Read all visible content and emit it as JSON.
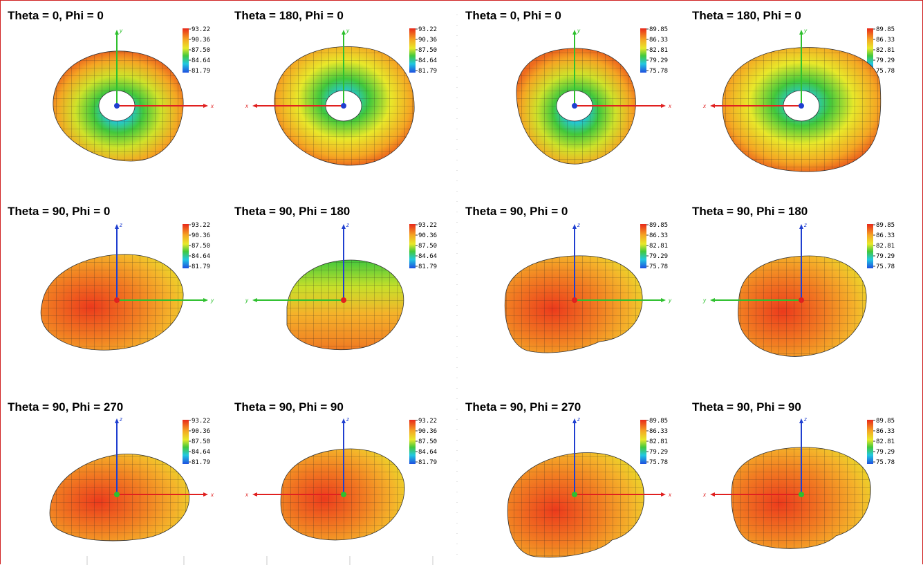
{
  "colors": {
    "high": "#e8281a",
    "upper": "#f5a623",
    "mid": "#e8e82a",
    "green": "#42c83c",
    "cyan": "#22c8e0",
    "low": "#1e4fe0",
    "axis_x": "#e02020",
    "axis_y": "#2ec02e",
    "axis_z": "#1f3fd0",
    "frame": "#d02020"
  },
  "colorbars": {
    "left": [
      "93.22",
      "90.36",
      "87.50",
      "84.64",
      "81.79"
    ],
    "right": [
      "89.85",
      "86.33",
      "82.81",
      "79.29",
      "75.78"
    ]
  },
  "panels": [
    {
      "title": "Theta = 0, Phi = 0",
      "scale": "left",
      "view": "top",
      "axes": {
        "h": "x",
        "v": "y",
        "h_dir": "right"
      }
    },
    {
      "title": "Theta = 180, Phi = 0",
      "scale": "left",
      "view": "top",
      "axes": {
        "h": "x",
        "v": "y",
        "h_dir": "left"
      }
    },
    {
      "title": "Theta = 0, Phi = 0",
      "scale": "right",
      "view": "top",
      "axes": {
        "h": "x",
        "v": "y",
        "h_dir": "right"
      }
    },
    {
      "title": "Theta = 180, Phi = 0",
      "scale": "right",
      "view": "top",
      "axes": {
        "h": "x",
        "v": "y",
        "h_dir": "left"
      }
    },
    {
      "title": "Theta = 90, Phi = 0",
      "scale": "left",
      "view": "side",
      "axes": {
        "h": "y",
        "v": "z",
        "h_dir": "right"
      }
    },
    {
      "title": "Theta = 90, Phi = 180",
      "scale": "left",
      "view": "side",
      "axes": {
        "h": "y",
        "v": "z",
        "h_dir": "left"
      }
    },
    {
      "title": "Theta = 90, Phi = 0",
      "scale": "right",
      "view": "side",
      "axes": {
        "h": "y",
        "v": "z",
        "h_dir": "right"
      }
    },
    {
      "title": "Theta = 90, Phi = 180",
      "scale": "right",
      "view": "side",
      "axes": {
        "h": "y",
        "v": "z",
        "h_dir": "left"
      }
    },
    {
      "title": "Theta = 90, Phi = 270",
      "scale": "left",
      "view": "side",
      "axes": {
        "h": "x",
        "v": "z",
        "h_dir": "right"
      }
    },
    {
      "title": "Theta = 90, Phi = 90",
      "scale": "left",
      "view": "side",
      "axes": {
        "h": "x",
        "v": "z",
        "h_dir": "left"
      }
    },
    {
      "title": "Theta = 90, Phi = 270",
      "scale": "right",
      "view": "side",
      "axes": {
        "h": "x",
        "v": "z",
        "h_dir": "right"
      }
    },
    {
      "title": "Theta = 90, Phi = 90",
      "scale": "right",
      "view": "side",
      "axes": {
        "h": "x",
        "v": "z",
        "h_dir": "left"
      }
    }
  ]
}
